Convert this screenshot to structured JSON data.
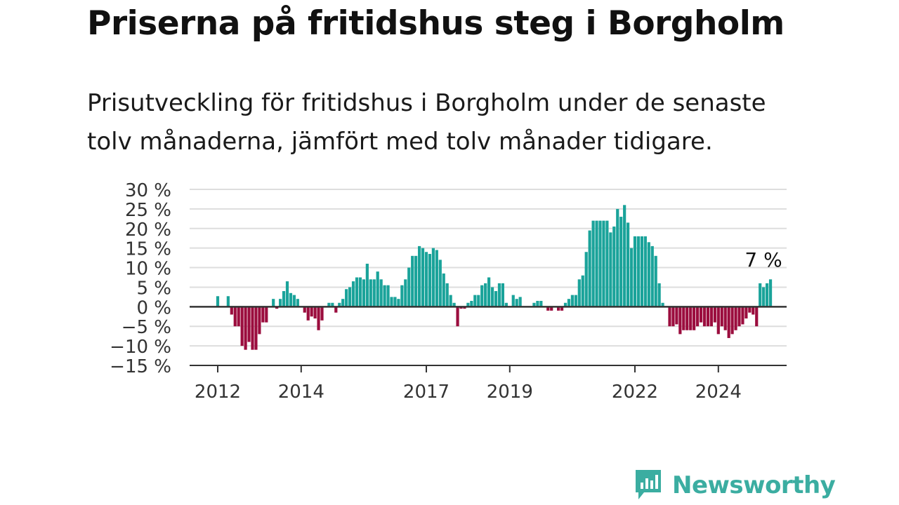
{
  "header": {
    "title": "Priserna på fritidshus steg i Borgholm",
    "subtitle": "Prisutveckling för fritidshus i Borgholm under de senaste tolv månaderna, jämfört med tolv månader tidigare."
  },
  "brand": {
    "name": "Newsworthy",
    "icon": "newsworthy-logo-icon",
    "color": "#3bada1"
  },
  "colors": {
    "positive": "#1aa39a",
    "negative": "#9b0d3e",
    "grid": "#dddddd",
    "axis": "#333333"
  },
  "chart_data": {
    "type": "bar",
    "ylim": [
      -15,
      30
    ],
    "yticks": [
      30,
      25,
      20,
      15,
      10,
      5,
      0,
      -5,
      -10,
      -15
    ],
    "ytick_labels": [
      "30 %",
      "25 %",
      "20 %",
      "15 %",
      "10 %",
      "5 %",
      "0 %",
      "−5 %",
      "−10 %",
      "−15 %"
    ],
    "x_start": "2012-01",
    "xticks": [
      {
        "year": 2012,
        "label": "2012"
      },
      {
        "year": 2014,
        "label": "2014"
      },
      {
        "year": 2017,
        "label": "2017"
      },
      {
        "year": 2019,
        "label": "2019"
      },
      {
        "year": 2022,
        "label": "2022"
      },
      {
        "year": 2024,
        "label": "2024"
      }
    ],
    "grid": true,
    "end_label": "7 %",
    "values": [
      2.7,
      0,
      0,
      2.7,
      -2,
      -5,
      -5,
      -10,
      -11,
      -9,
      -11,
      -11,
      -7,
      -4,
      -4,
      0,
      2,
      -0.5,
      2,
      4,
      6.5,
      3.5,
      3,
      2,
      0,
      -1.5,
      -3.5,
      -2.5,
      -3,
      -6,
      -3.5,
      0,
      1,
      1,
      -1.5,
      1,
      2,
      4.5,
      5,
      6.5,
      7.5,
      7.5,
      7,
      11,
      7,
      7,
      9,
      7,
      5.5,
      5.5,
      2.5,
      2.5,
      2,
      5.5,
      7,
      10,
      13,
      13,
      15.5,
      15,
      14,
      13.5,
      15,
      14.5,
      12,
      8.5,
      6,
      3,
      1,
      -5,
      -0.5,
      -0.5,
      1,
      1.5,
      3,
      3,
      5.5,
      6,
      7.5,
      5,
      4,
      6,
      6,
      1,
      0,
      3,
      2,
      2.5,
      0,
      0,
      0,
      1,
      1.5,
      1.5,
      0,
      -1,
      -1,
      0,
      -1,
      -1,
      1,
      2,
      3,
      3,
      7,
      8,
      14,
      19.5,
      22,
      22,
      22,
      22,
      22,
      19,
      20.5,
      25,
      23,
      26,
      21.5,
      15,
      18,
      18,
      18,
      18,
      16.5,
      15.5,
      13,
      6,
      1,
      0,
      -5,
      -5,
      -4.5,
      -7,
      -6,
      -6,
      -6,
      -6,
      -5,
      -4,
      -5,
      -5,
      -5,
      -4,
      -7,
      -5,
      -6,
      -8,
      -7,
      -6,
      -5,
      -4.5,
      -3,
      -1.5,
      -2,
      -5,
      6,
      5,
      6,
      7
    ]
  }
}
